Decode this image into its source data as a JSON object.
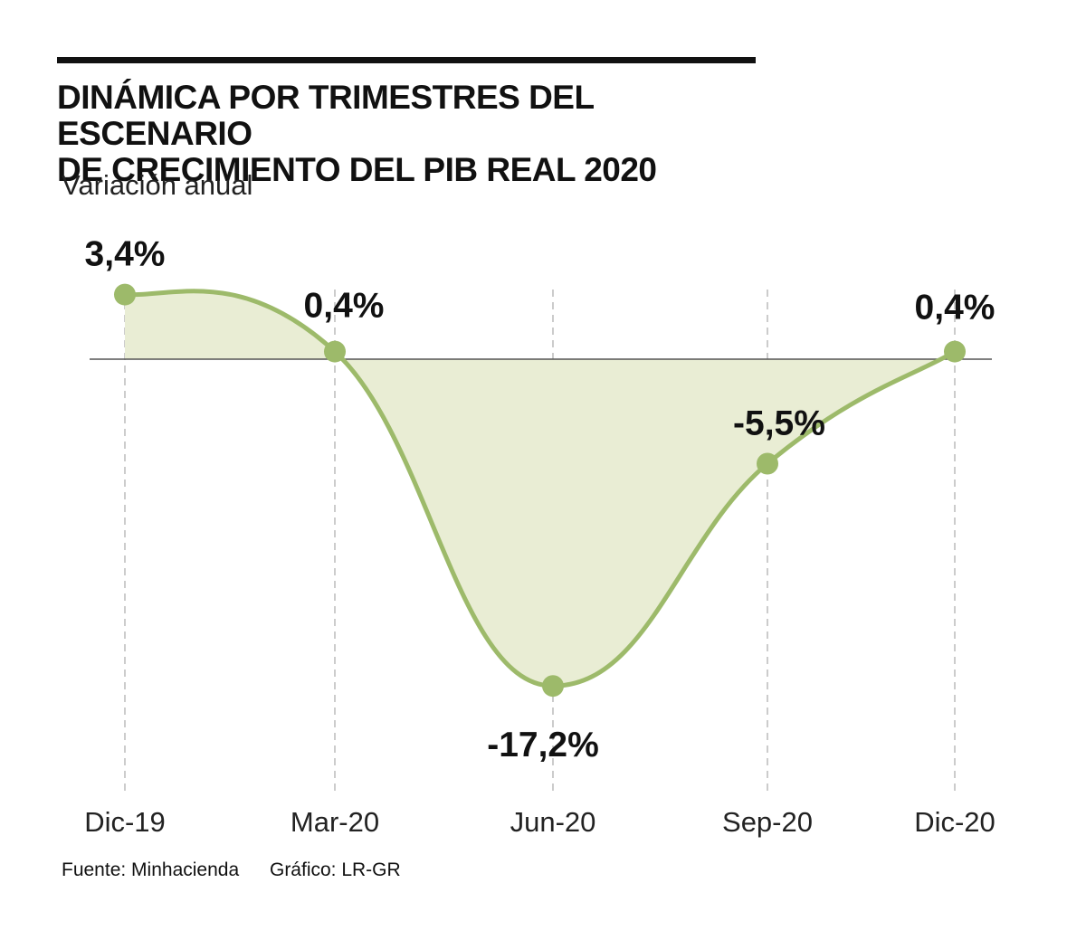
{
  "header": {
    "title_line1": "DINÁMICA POR TRIMESTRES DEL ESCENARIO",
    "title_line2": "DE CRECIMIENTO DEL PIB REAL 2020",
    "subtitle": "Variación anual"
  },
  "chart_data": {
    "type": "area",
    "title": "DINÁMICA POR TRIMESTRES DEL ESCENARIO DE CRECIMIENTO DEL PIB REAL 2020",
    "ylabel": "Variación anual",
    "xlabel": "",
    "categories": [
      "Dic-19",
      "Mar-20",
      "Jun-20",
      "Sep-20",
      "Dic-20"
    ],
    "values": [
      3.4,
      0.4,
      -17.2,
      -5.5,
      0.4
    ],
    "data_labels": [
      "3,4%",
      "0,4%",
      "-17,2%",
      "-5,5%",
      "0,4%"
    ],
    "ylim": [
      -23.0,
      6.5
    ],
    "grid": "vertical-dashed",
    "colors": {
      "line": "#9dba6a",
      "fill": "#e9edd4",
      "marker": "#9dba6a",
      "zero_line": "#555555",
      "grid": "#999999",
      "text": "#111111"
    }
  },
  "footer": {
    "source": "Fuente: Minhacienda",
    "credit": "Gráfico: LR-GR"
  }
}
